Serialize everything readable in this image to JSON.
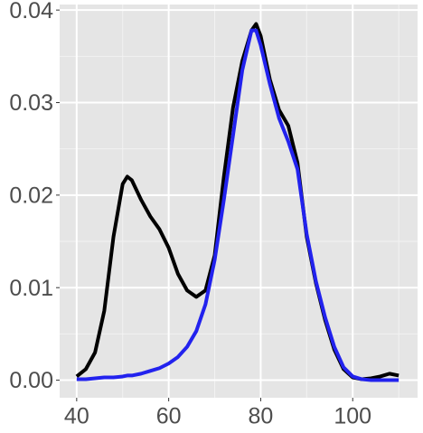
{
  "chart_data": {
    "type": "line",
    "x": [
      40,
      42,
      44,
      46,
      48,
      50,
      51,
      52,
      54,
      56,
      58,
      60,
      62,
      64,
      66,
      68,
      70,
      72,
      74,
      76,
      78,
      79,
      80,
      82,
      84,
      86,
      88,
      90,
      92,
      94,
      96,
      98,
      100,
      102,
      104,
      106,
      108,
      110
    ],
    "series": [
      {
        "color": "#000000",
        "values": [
          0.0004,
          0.0012,
          0.003,
          0.0075,
          0.0155,
          0.0212,
          0.022,
          0.0216,
          0.0195,
          0.0177,
          0.0163,
          0.0143,
          0.0115,
          0.0097,
          0.009,
          0.0097,
          0.0135,
          0.022,
          0.0295,
          0.0345,
          0.0378,
          0.0385,
          0.0372,
          0.0325,
          0.0292,
          0.0275,
          0.0235,
          0.0155,
          0.0105,
          0.0065,
          0.0033,
          0.0012,
          0.0003,
          0.0001,
          0.0002,
          0.0004,
          0.0007,
          0.0005
        ]
      },
      {
        "color": "#2222ee",
        "values": [
          0.0001,
          0.0001,
          0.0002,
          0.0003,
          0.0003,
          0.0004,
          0.0005,
          0.0005,
          0.0007,
          0.001,
          0.0013,
          0.0018,
          0.0025,
          0.0036,
          0.0053,
          0.0082,
          0.013,
          0.0195,
          0.0265,
          0.0335,
          0.0378,
          0.0378,
          0.0362,
          0.032,
          0.0283,
          0.0258,
          0.0228,
          0.0158,
          0.0107,
          0.0068,
          0.0036,
          0.0014,
          0.0004,
          0.0001,
          0,
          0,
          0,
          0
        ]
      }
    ],
    "xlim": [
      36.3,
      114.1
    ],
    "ylim": [
      -0.0019,
      0.0406
    ],
    "xticks": [
      40,
      60,
      80,
      100
    ],
    "yticks": [
      {
        "value": 0,
        "label": "0.00"
      },
      0.01,
      0.02,
      0.03,
      0.04
    ],
    "x_minor_ticks": [
      50,
      70,
      90,
      110
    ],
    "y_minor_ticks": [
      0.005,
      0.015,
      0.025,
      0.035
    ],
    "grid": true
  }
}
